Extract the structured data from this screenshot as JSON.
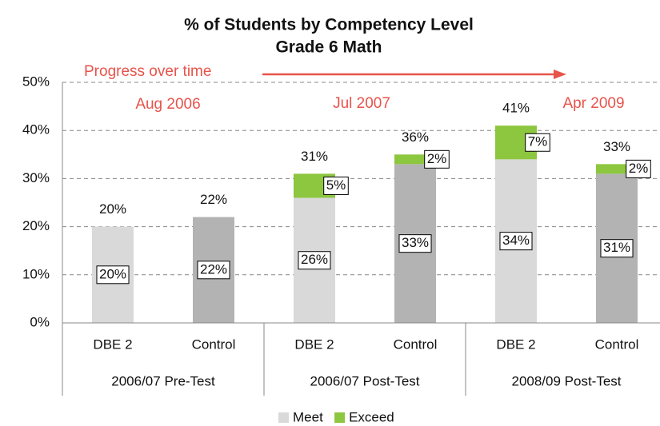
{
  "chart_data": {
    "type": "stacked_bar",
    "title": [
      "% of Students by Competency Level",
      "Grade 6 Math"
    ],
    "categories": [
      "DBE 2",
      "Control",
      "DBE 2",
      "Control",
      "DBE 2",
      "Control"
    ],
    "groups": [
      "2006/07 Pre-Test",
      "2006/07 Post-Test",
      "2008/09 Post-Test"
    ],
    "series": [
      {
        "name": "Meet",
        "color": "#d9d9d9",
        "colors": [
          "#d9d9d9",
          "#b3b3b3",
          "#d9d9d9",
          "#b3b3b3",
          "#d9d9d9",
          "#b3b3b3"
        ],
        "values": [
          20,
          22,
          26,
          33,
          34,
          31
        ],
        "value_labels": [
          "20%",
          "22%",
          "26%",
          "33%",
          "34%",
          "31%"
        ]
      },
      {
        "name": "Exceed",
        "color": "#8dc63f",
        "values": [
          null,
          null,
          5,
          2,
          7,
          2
        ],
        "value_labels": [
          null,
          null,
          "5%",
          "2%",
          "7%",
          "2%"
        ]
      }
    ],
    "total_labels": [
      "20%",
      "22%",
      "31%",
      "36%",
      "41%",
      "33%"
    ],
    "annotations": [
      "Progress over time",
      "Aug 2006",
      "Jul 2007",
      "Apr 2009"
    ],
    "ylim": [
      0,
      50
    ],
    "yticks": [
      {
        "value": 0,
        "label": "0%"
      },
      {
        "value": 10,
        "label": "10%"
      },
      {
        "value": 20,
        "label": "20%"
      },
      {
        "value": 30,
        "label": "30%"
      },
      {
        "value": 40,
        "label": "40%"
      },
      {
        "value": 50,
        "label": "50%"
      }
    ],
    "grid": true,
    "legend": "bottom"
  }
}
